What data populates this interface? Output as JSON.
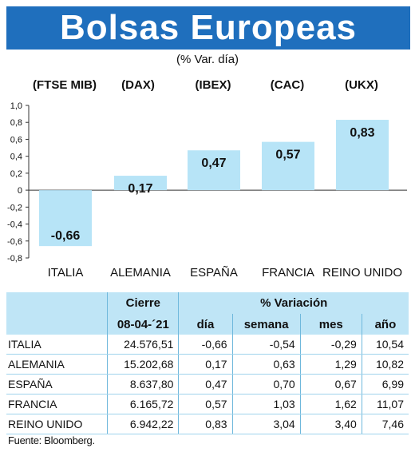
{
  "header": {
    "title": "Bolsas Europeas",
    "subtitle": "(% Var. día)"
  },
  "index_codes": [
    "(FTSE MIB)",
    "(DAX)",
    "(IBEX)",
    "(CAC)",
    "(UKX)"
  ],
  "colors": {
    "title_band": "#1f6fbd",
    "bar_fill": "#b7e4f7",
    "table_header": "#bfe5f6"
  },
  "chart_data": {
    "type": "bar",
    "categories": [
      "ITALIA",
      "ALEMANIA",
      "ESPAÑA",
      "FRANCIA",
      "REINO UNIDO"
    ],
    "values": [
      -0.66,
      0.17,
      0.47,
      0.57,
      0.83
    ],
    "value_labels": [
      "-0,66",
      "0,17",
      "0,47",
      "0,57",
      "0,83"
    ],
    "ylim": [
      -0.8,
      1.0
    ],
    "yticks": [
      1.0,
      0.8,
      0.6,
      0.4,
      0.2,
      0,
      -0.2,
      -0.4,
      -0.6,
      -0.8
    ],
    "ytick_labels": [
      "1,0",
      "0,8",
      "0,6",
      "0,4",
      "0,2",
      "0",
      "-0,2",
      "-0,4",
      "-0,6",
      "-0,8"
    ],
    "grid": false
  },
  "table": {
    "header_cierre": "Cierre",
    "header_variacion": "% Variación",
    "date": "08-04-´21",
    "col_dia": "día",
    "col_semana": "semana",
    "col_mes": "mes",
    "col_anio": "año",
    "rows": [
      {
        "country": "ITALIA",
        "cierre": "24.576,51",
        "dia": "-0,66",
        "semana": "-0,54",
        "mes": "-0,29",
        "anio": "10,54"
      },
      {
        "country": "ALEMANIA",
        "cierre": "15.202,68",
        "dia": "0,17",
        "semana": "0,63",
        "mes": "1,29",
        "anio": "10,82"
      },
      {
        "country": "ESPAÑA",
        "cierre": "8.637,80",
        "dia": "0,47",
        "semana": "0,70",
        "mes": "0,67",
        "anio": "6,99"
      },
      {
        "country": "FRANCIA",
        "cierre": "6.165,72",
        "dia": "0,57",
        "semana": "1,03",
        "mes": "1,62",
        "anio": "11,07"
      },
      {
        "country": "REINO UNIDO",
        "cierre": "6.942,22",
        "dia": "0,83",
        "semana": "3,04",
        "mes": "3,40",
        "anio": "7,46"
      }
    ]
  },
  "source": "Fuente: Bloomberg."
}
